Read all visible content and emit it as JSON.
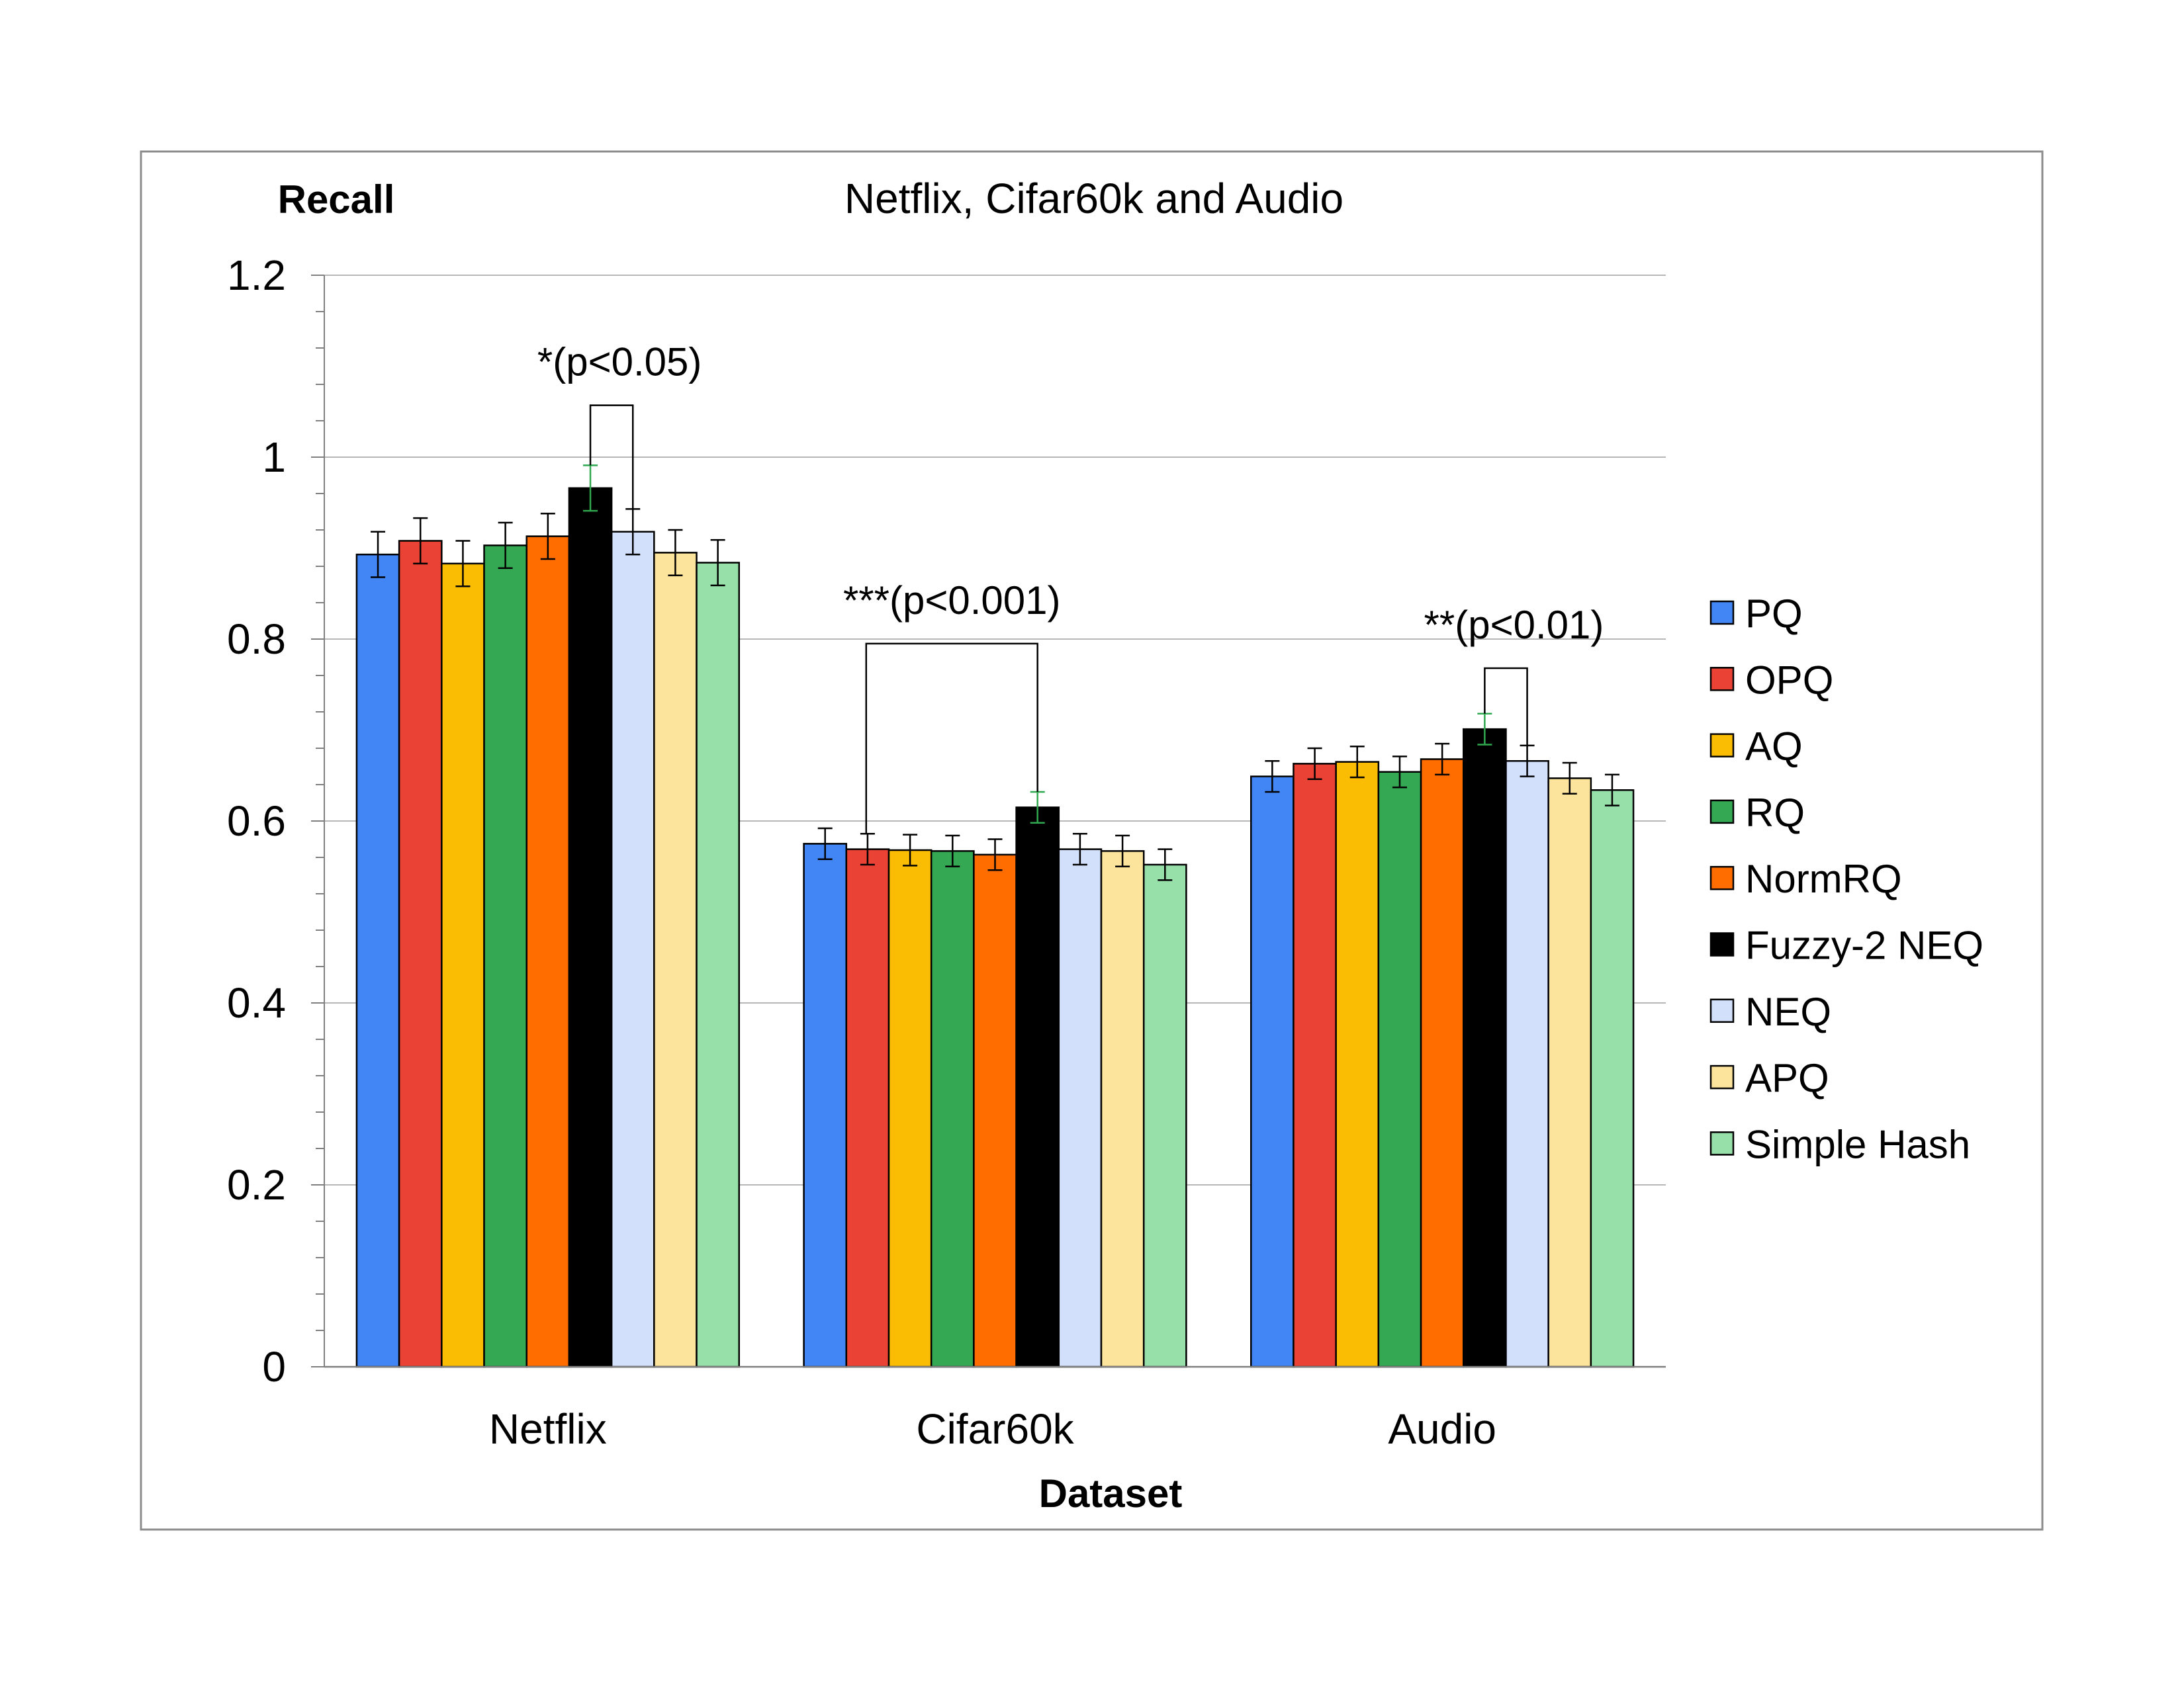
{
  "chart_data": {
    "type": "bar",
    "title": "Netflix, Cifar60k and Audio",
    "ylabel": "Recall",
    "xlabel": "Dataset",
    "ylim": [
      0,
      1.2
    ],
    "yticks": [
      "0",
      "0.2",
      "0.4",
      "0.6",
      "0.8",
      "1",
      "1.2"
    ],
    "grid": true,
    "legend_position": "right",
    "categories": [
      "Netflix",
      "Cifar60k",
      "Audio"
    ],
    "series": [
      {
        "name": "PQ",
        "color": "#4285f4",
        "values": [
          0.893,
          0.575,
          0.649
        ],
        "errors": [
          0.025,
          0.017,
          0.017
        ]
      },
      {
        "name": "OPQ",
        "color": "#ea4335",
        "values": [
          0.908,
          0.569,
          0.663
        ],
        "errors": [
          0.025,
          0.017,
          0.017
        ]
      },
      {
        "name": "AQ",
        "color": "#fbbc04",
        "values": [
          0.883,
          0.568,
          0.665
        ],
        "errors": [
          0.025,
          0.017,
          0.017
        ]
      },
      {
        "name": "RQ",
        "color": "#34a853",
        "values": [
          0.903,
          0.567,
          0.654
        ],
        "errors": [
          0.025,
          0.017,
          0.017
        ]
      },
      {
        "name": "NormRQ",
        "color": "#ff6d01",
        "values": [
          0.913,
          0.563,
          0.668
        ],
        "errors": [
          0.025,
          0.017,
          0.017
        ]
      },
      {
        "name": "Fuzzy-2 NEQ",
        "color": "#000000",
        "values": [
          0.966,
          0.615,
          0.701
        ],
        "errors": [
          0.025,
          0.017,
          0.017
        ]
      },
      {
        "name": "NEQ",
        "color": "#d2e0fb",
        "values": [
          0.918,
          0.569,
          0.666
        ],
        "errors": [
          0.025,
          0.017,
          0.017
        ]
      },
      {
        "name": "APQ",
        "color": "#fde49c",
        "values": [
          0.895,
          0.567,
          0.647
        ],
        "errors": [
          0.025,
          0.017,
          0.017
        ]
      },
      {
        "name": "Simple Hash",
        "color": "#98e0aa",
        "values": [
          0.884,
          0.552,
          0.634
        ],
        "errors": [
          0.025,
          0.017,
          0.017
        ]
      }
    ],
    "annotations": [
      {
        "text": "*(p<0.05)",
        "category": "Netflix",
        "from_series": 5,
        "to_series": 6,
        "bracket_y": 1.057
      },
      {
        "text": "***(p<0.001)",
        "category_from": "Cifar60k",
        "from_series": 0,
        "to_series": 5,
        "bracket_y": 0.795
      },
      {
        "text": "**(p<0.01)",
        "category": "Audio",
        "from_series": 5,
        "to_series": 6,
        "bracket_y": 0.768
      }
    ]
  }
}
